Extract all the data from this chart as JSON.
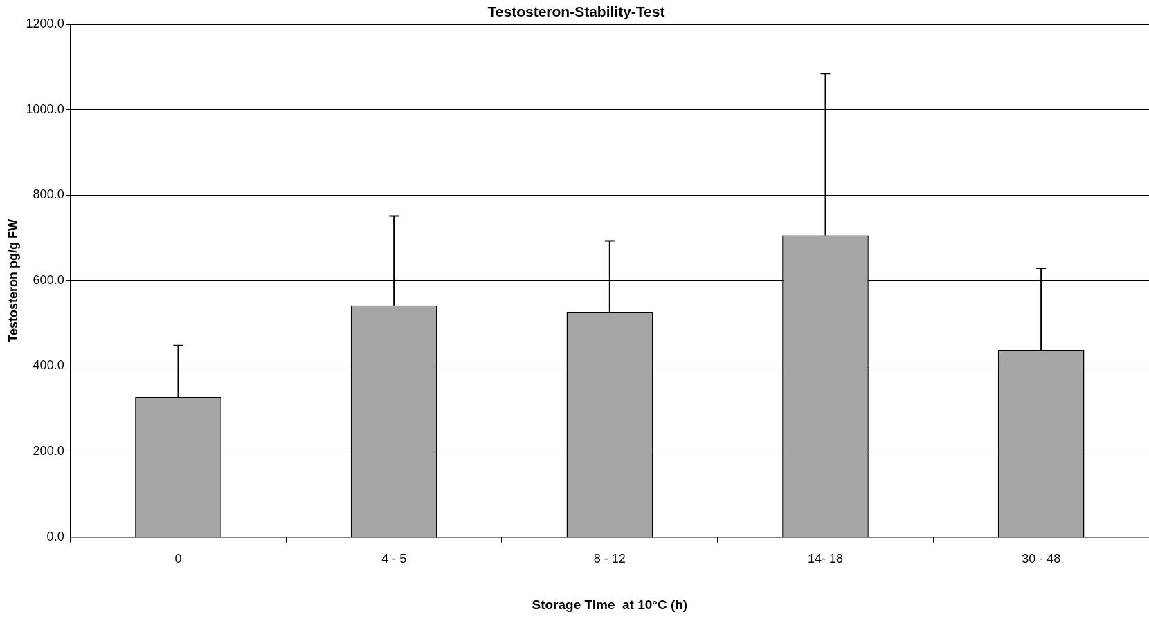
{
  "chart_data": {
    "type": "bar",
    "title": "Testosteron-Stability-Test",
    "xlabel": "Storage Time  at 10°C (h)",
    "ylabel": "Testosteron pg/g FW",
    "categories": [
      "0",
      "4 - 5",
      "8 - 12",
      "14- 18",
      "30 - 48"
    ],
    "values": [
      328,
      542,
      527,
      706,
      438
    ],
    "errors": [
      [
        328,
        448
      ],
      [
        542,
        751
      ],
      [
        527,
        693
      ],
      [
        706,
        1085
      ],
      [
        438,
        629
      ]
    ],
    "color": "#a6a6a6",
    "ylim": [
      0,
      1200
    ],
    "yticks": [
      {
        "value": 0,
        "label": "0.0"
      },
      {
        "value": 200,
        "label": "200.0"
      },
      {
        "value": 400,
        "label": "400.0"
      },
      {
        "value": 600,
        "label": "600.0"
      },
      {
        "value": 800,
        "label": "800.0"
      },
      {
        "value": 1000,
        "label": "1000.0"
      },
      {
        "value": 1200,
        "label": "1200.0"
      }
    ],
    "grid": "y",
    "legend": false
  }
}
